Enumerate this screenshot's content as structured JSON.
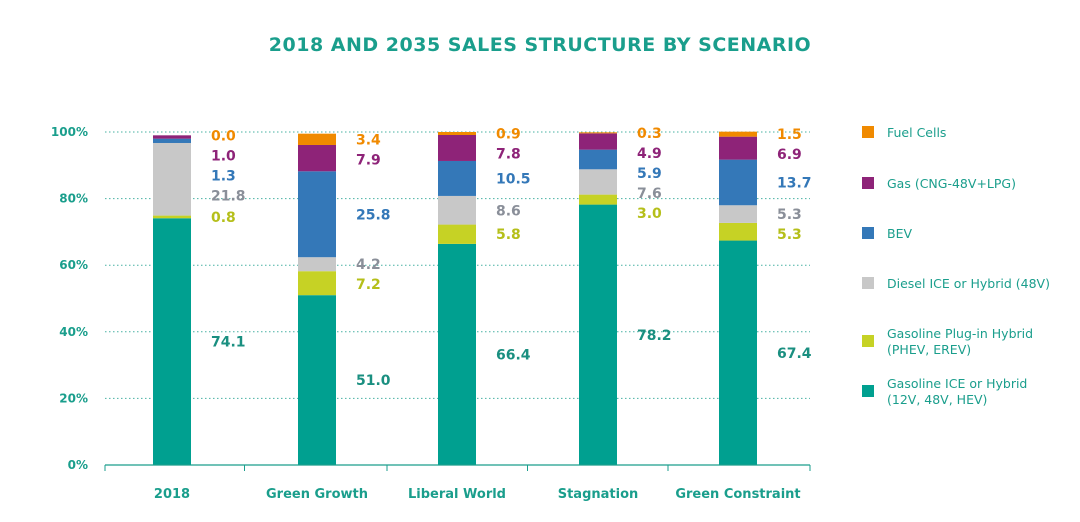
{
  "chart_data": {
    "type": "bar",
    "stacked": true,
    "title": "2018 AND 2035 SALES STRUCTURE BY SCENARIO",
    "categories": [
      "2018",
      "Green Growth",
      "Liberal World",
      "Stagnation",
      "Green Constraint"
    ],
    "y_ticks": [
      "0%",
      "20%",
      "40%",
      "60%",
      "80%",
      "100%"
    ],
    "ylim": [
      0,
      100
    ],
    "grid": "dotted-horizontal",
    "legend_position": "right",
    "series": [
      {
        "name": "Gasoline ICE or Hybrid (12V, 48V, HEV)",
        "legend_lines": [
          "Gasoline ICE or Hybrid",
          "(12V, 48V, HEV)"
        ],
        "color": "#00a090",
        "label_color": "#1a8f80",
        "values": [
          74.1,
          51.0,
          66.4,
          78.2,
          67.4
        ],
        "labels": [
          "74.1",
          "51.0",
          "66.4",
          "78.2",
          "67.4"
        ]
      },
      {
        "name": "Gasoline Plug-in Hybrid (PHEV, EREV)",
        "legend_lines": [
          "Gasoline Plug-in Hybrid",
          "(PHEV, EREV)"
        ],
        "color": "#c6d225",
        "label_color": "#b5bf1a",
        "values": [
          0.8,
          7.2,
          5.8,
          3.0,
          5.3
        ],
        "labels": [
          "0.8",
          "7.2",
          "5.8",
          "3.0",
          "5.3"
        ]
      },
      {
        "name": "Diesel ICE or Hybrid (48V)",
        "legend_lines": [
          "Diesel ICE or Hybrid (48V)"
        ],
        "color": "#c8c8c8",
        "label_color": "#8a8f99",
        "values": [
          21.8,
          4.2,
          8.6,
          7.6,
          5.3
        ],
        "labels": [
          "21.8",
          "4.2",
          "8.6",
          "7.6",
          "5.3"
        ]
      },
      {
        "name": "BEV",
        "legend_lines": [
          "BEV"
        ],
        "color": "#3478b8",
        "label_color": "#3478b8",
        "values": [
          1.3,
          25.8,
          10.5,
          5.9,
          13.7
        ],
        "labels": [
          "1.3",
          "25.8",
          "10.5",
          "5.9",
          "13.7"
        ]
      },
      {
        "name": "Gas (CNG-48V+LPG)",
        "legend_lines": [
          "Gas (CNG-48V+LPG)"
        ],
        "color": "#8e2378",
        "label_color": "#8e2378",
        "values": [
          1.0,
          7.9,
          7.8,
          4.9,
          6.9
        ],
        "labels": [
          "1.0",
          "7.9",
          "7.8",
          "4.9",
          "6.9"
        ]
      },
      {
        "name": "Fuel Cells",
        "legend_lines": [
          "Fuel Cells"
        ],
        "color": "#f08a00",
        "label_color": "#f08a00",
        "values": [
          0.0,
          3.4,
          0.9,
          0.3,
          1.5
        ],
        "labels": [
          "0.0",
          "3.4",
          "0.9",
          "0.3",
          "1.5"
        ]
      }
    ]
  }
}
